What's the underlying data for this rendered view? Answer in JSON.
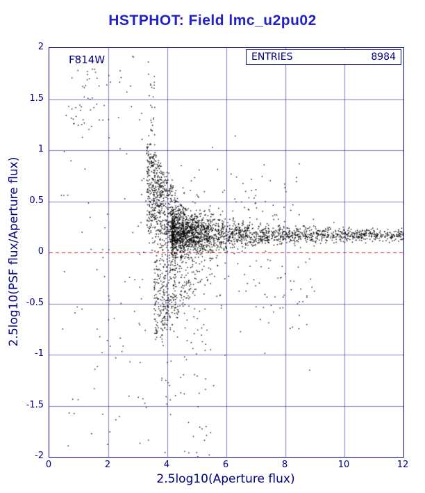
{
  "header": {
    "title": "HSTPHOT: Field lmc_u2pu02"
  },
  "chart_data": {
    "type": "scatter",
    "title": "HSTPHOT: Field lmc_u2pu02",
    "xlabel": "2.5log10(Aperture flux)",
    "ylabel": "2.5log10(PSF flux/Aperture flux)",
    "xlim": [
      0,
      12
    ],
    "ylim": [
      -2,
      2
    ],
    "x_ticks": [
      0,
      2,
      4,
      6,
      8,
      10,
      12
    ],
    "y_ticks": [
      -2,
      -1.5,
      -1,
      -0.5,
      0,
      0.5,
      1,
      1.5,
      2
    ],
    "grid": true,
    "legend_position": "none",
    "filter_label": "F814W",
    "stats": {
      "label": "ENTRIES",
      "value": 8984
    },
    "reference_line": {
      "y": 0,
      "color": "#cc2222",
      "style": "dashed"
    },
    "point_color": "#000000",
    "axis_color": "#000080",
    "grid_color": "#000080",
    "title_color": "#2121cc",
    "background": "#ffffff",
    "seed": 42,
    "n_points_total": 8984,
    "description": "Ratio of PSF to aperture photometry versus aperture flux: broad funnel of scatter at faint fluxes (x~1-4) converging into a tight horizontal band at y~0.17 extending to x=12, with sparse outliers down to y=-2; red dashed reference line at y=0.",
    "clusters": [
      {
        "kind": "hband",
        "n": 1750,
        "x0": 4.15,
        "x1": 12.0,
        "xpow": 1.9,
        "yc": 0.17,
        "s0": 0.1,
        "tau": 2.2,
        "s1": 0.028
      },
      {
        "kind": "blob",
        "n": 620,
        "xc": 4.65,
        "xs": 0.55,
        "yc": 0.2,
        "ys": 0.1
      },
      {
        "kind": "funnel",
        "n": 520,
        "x0": 3.3,
        "xsig": 0.55,
        "xmax": 5.4,
        "span": 1.9,
        "ybase": 0.22,
        "amp": 0.85,
        "dir": 1,
        "upow": 0.75,
        "tpow": 1.15,
        "jitter": 0.05
      },
      {
        "kind": "funnel",
        "n": 430,
        "x0": 3.55,
        "xsig": 0.8,
        "xmax": 6.8,
        "span": 3.2,
        "ybase": 0.05,
        "amp": 0.9,
        "dir": -1,
        "upow": 0.8,
        "tpow": 1.2,
        "jitter": 0.06
      },
      {
        "kind": "box",
        "n": 55,
        "x0": 3.8,
        "x1": 5.6,
        "y0": -2.0,
        "y1": -0.55
      },
      {
        "kind": "box",
        "n": 118,
        "x0": 0.4,
        "x1": 3.4,
        "y0": -1.95,
        "y1": 1.95
      },
      {
        "kind": "box",
        "n": 26,
        "x0": 0.55,
        "x1": 1.7,
        "y0": 1.1,
        "y1": 1.8
      },
      {
        "kind": "box",
        "n": 24,
        "x0": 3.38,
        "x1": 3.58,
        "y0": 0.9,
        "y1": 1.8
      },
      {
        "kind": "gband",
        "n": 95,
        "x0": 4.4,
        "x1": 9.0,
        "yc": -0.05,
        "s": 0.5,
        "dir": -1
      },
      {
        "kind": "gband",
        "n": 70,
        "x0": 4.3,
        "x1": 8.5,
        "yc": 0.32,
        "s": 0.28,
        "dir": 1
      }
    ]
  }
}
